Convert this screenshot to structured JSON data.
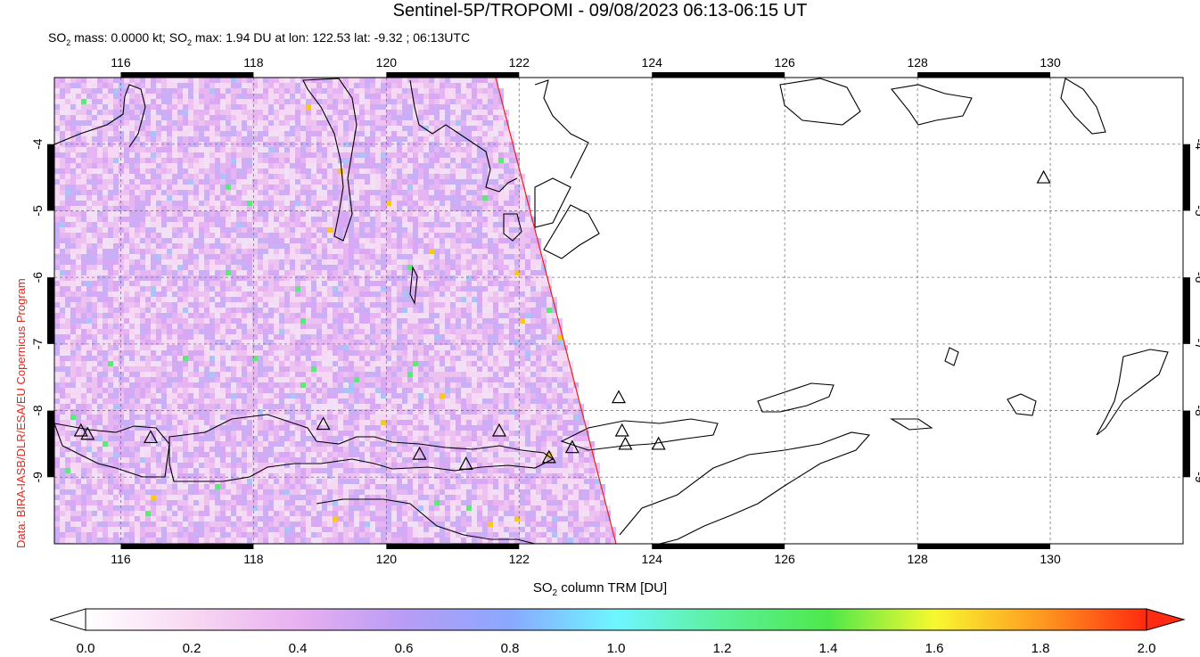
{
  "title": "Sentinel-5P/TROPOMI - 09/08/2023 06:13-06:15 UT",
  "subtitle": {
    "mass_label": "SO",
    "mass_rest": " mass: 0.0000 kt; SO",
    "max_rest": " max: 1.94 DU at lon: 122.53 lat: -9.32 ; 06:13UTC",
    "sub": "2"
  },
  "credit": "Data: BIRA-IASB/DLR/ESA/EU Copernicus Program",
  "map": {
    "lon_range": [
      115.0,
      132.0
    ],
    "lat_range": [
      -10.0,
      -3.0
    ],
    "lon_ticks": [
      "116",
      "118",
      "120",
      "122",
      "124",
      "126",
      "128",
      "130"
    ],
    "lat_ticks": [
      "-4",
      "-5",
      "-6",
      "-7",
      "-8",
      "-9"
    ],
    "swath_edge_label": "orbit swath edge",
    "volcano_icon": "triangle-volcano-icon"
  },
  "axis_caption_parts": {
    "a": "SO",
    "sub": "2",
    "b": " column TRM [DU]"
  },
  "colorbar": {
    "ticks": [
      "0.0",
      "0.2",
      "0.4",
      "0.6",
      "0.8",
      "1.0",
      "1.2",
      "1.4",
      "1.6",
      "1.8",
      "2.0"
    ],
    "colors": [
      "#ffffff",
      "#f8d8f2",
      "#e8b0f0",
      "#b89cf5",
      "#8aa8ff",
      "#6ef6ff",
      "#5cf09a",
      "#4ee84a",
      "#f8f830",
      "#ff9a20",
      "#ff2a10"
    ]
  }
}
